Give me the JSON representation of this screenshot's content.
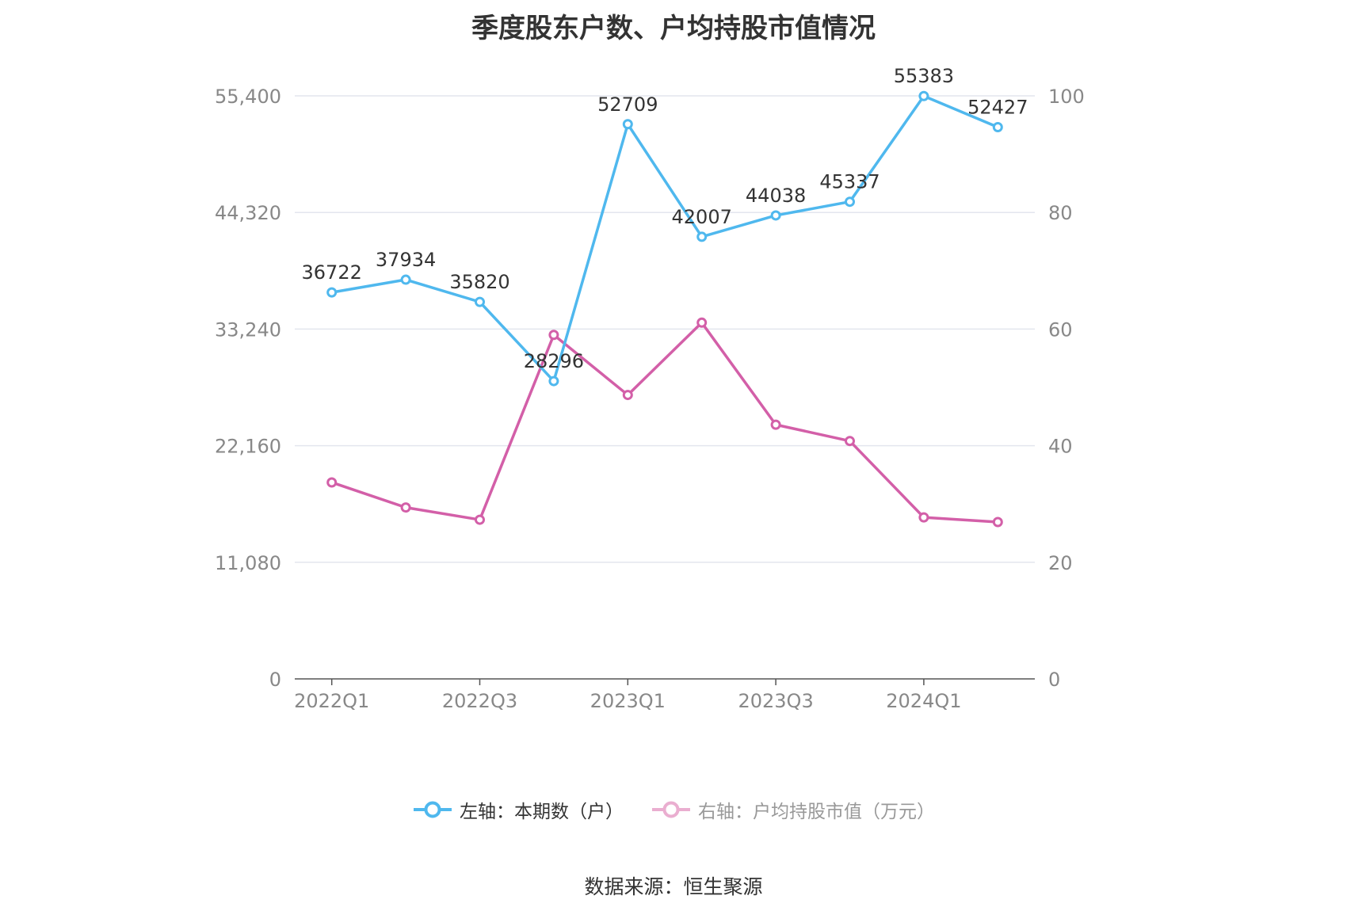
{
  "chart_data": {
    "type": "line",
    "title": "季度股东户数、户均持股市值情况",
    "categories": [
      "2022Q1",
      "2022Q2",
      "2022Q3",
      "2022Q4",
      "2023Q1",
      "2023Q2",
      "2023Q3",
      "2023Q4",
      "2024Q1",
      "2024Q2"
    ],
    "x_tick_labels": [
      "2022Q1",
      "",
      "2022Q3",
      "",
      "2023Q1",
      "",
      "2023Q3",
      "",
      "2024Q1",
      ""
    ],
    "left_axis": {
      "ylim": [
        0,
        55400
      ],
      "ticks": [
        "0",
        "11,080",
        "22,160",
        "33,240",
        "44,320",
        "55,400"
      ]
    },
    "right_axis": {
      "ylim": [
        0,
        100
      ],
      "ticks": [
        "0",
        "20",
        "40",
        "60",
        "80",
        "100"
      ]
    },
    "grid": true,
    "series": [
      {
        "name": "左轴：本期数（户）",
        "axis": "left",
        "color": "#4fb8ee",
        "values": [
          36722,
          37934,
          35820,
          28296,
          52709,
          42007,
          44038,
          45337,
          55383,
          52427
        ],
        "labels": [
          "36722",
          "37934",
          "35820",
          "28296",
          "52709",
          "42007",
          "44038",
          "45337",
          "55383",
          "52427"
        ]
      },
      {
        "name": "右轴：户均持股市值（万元）",
        "axis": "right",
        "color": "#d35fa8",
        "values": [
          33.7,
          29.4,
          27.3,
          59.0,
          48.7,
          61.1,
          43.6,
          40.8,
          27.7,
          26.9
        ]
      }
    ],
    "legend_position": "bottom"
  },
  "legend": {
    "items": [
      {
        "label": "左轴：本期数（户）",
        "color": "#4fb8ee",
        "active": true
      },
      {
        "label": "右轴：户均持股市值（万元）",
        "color": "#eaaed0",
        "active": false
      }
    ]
  },
  "source": "数据来源：恒生聚源"
}
